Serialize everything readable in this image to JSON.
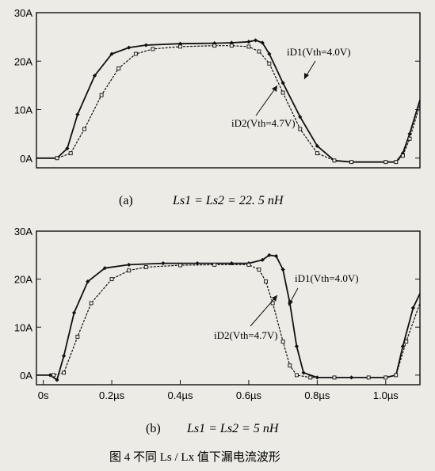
{
  "figure": {
    "caption": "图 4    不同 Ls / Lx 值下漏电流波形",
    "background": "#ecebe6",
    "ink": "#111111"
  },
  "chart_data": [
    {
      "type": "line",
      "panel_label": "(a)",
      "panel_caption": "Ls1 = Ls2 = 22. 5 nH",
      "x_unit": "µs",
      "xlim": [
        -0.02,
        1.1
      ],
      "ylim": [
        -2,
        30
      ],
      "y_ticks": [
        0,
        10,
        20,
        30
      ],
      "y_tick_labels": [
        "0A",
        "10A",
        "20A",
        "30A"
      ],
      "annotations": [
        "iD1(Vth=4.0V)",
        "iD2(Vth=4.7V)"
      ],
      "series": [
        {
          "name": "iD1(Vth=4.0V)",
          "marker": "diamond",
          "x": [
            -0.02,
            0.04,
            0.07,
            0.1,
            0.15,
            0.2,
            0.25,
            0.3,
            0.4,
            0.5,
            0.55,
            0.6,
            0.62,
            0.64,
            0.66,
            0.7,
            0.75,
            0.8,
            0.85,
            0.9,
            1.0,
            1.03,
            1.05,
            1.07,
            1.1
          ],
          "y": [
            0,
            0,
            2,
            9,
            17,
            21.5,
            22.8,
            23.3,
            23.6,
            23.7,
            23.8,
            24.0,
            24.3,
            23.8,
            21.5,
            15.5,
            8.5,
            2.5,
            -0.5,
            -0.8,
            -0.8,
            -0.8,
            1,
            5,
            12
          ]
        },
        {
          "name": "iD2(Vth=4.7V)",
          "marker": "square",
          "x": [
            -0.02,
            0.04,
            0.08,
            0.12,
            0.17,
            0.22,
            0.27,
            0.32,
            0.4,
            0.5,
            0.55,
            0.6,
            0.63,
            0.66,
            0.7,
            0.75,
            0.8,
            0.85,
            0.9,
            1.0,
            1.03,
            1.05,
            1.07,
            1.1
          ],
          "y": [
            0,
            0,
            1,
            6,
            13,
            18.5,
            21.5,
            22.5,
            23.0,
            23.2,
            23.2,
            23.0,
            22.0,
            19.5,
            13.5,
            6,
            1,
            -0.5,
            -0.8,
            -0.8,
            -0.8,
            0.5,
            4,
            11
          ]
        }
      ]
    },
    {
      "type": "line",
      "panel_label": "(b)",
      "panel_caption": "Ls1 = Ls2 = 5 nH",
      "x_unit": "µs",
      "x_ticks": [
        0,
        0.2,
        0.4,
        0.6,
        0.8,
        1.0
      ],
      "x_tick_labels": [
        "0s",
        "0.2µs",
        "0.4µs",
        "0.6µs",
        "0.8µs",
        "1.0µs"
      ],
      "xlim": [
        -0.02,
        1.1
      ],
      "ylim": [
        -2,
        30
      ],
      "y_ticks": [
        0,
        10,
        20,
        30
      ],
      "y_tick_labels": [
        "0A",
        "10A",
        "20A",
        "30A"
      ],
      "annotations": [
        "iD1(Vth=4.0V)",
        "iD2(Vth=4.7V)"
      ],
      "series": [
        {
          "name": "iD1(Vth=4.0V)",
          "marker": "diamond",
          "x": [
            -0.02,
            0.02,
            0.04,
            0.06,
            0.09,
            0.13,
            0.18,
            0.25,
            0.35,
            0.45,
            0.55,
            0.6,
            0.64,
            0.66,
            0.68,
            0.7,
            0.72,
            0.74,
            0.76,
            0.8,
            0.9,
            1.0,
            1.03,
            1.05,
            1.08,
            1.1
          ],
          "y": [
            0,
            0,
            -1,
            4,
            13,
            19.5,
            22.3,
            23.0,
            23.3,
            23.3,
            23.3,
            23.3,
            24.0,
            25.0,
            24.8,
            22,
            15,
            6,
            0.5,
            -0.5,
            -0.5,
            -0.5,
            0,
            6,
            14,
            17
          ]
        },
        {
          "name": "iD2(Vth=4.7V)",
          "marker": "square",
          "x": [
            -0.02,
            0.03,
            0.06,
            0.1,
            0.14,
            0.2,
            0.25,
            0.3,
            0.4,
            0.5,
            0.6,
            0.63,
            0.65,
            0.67,
            0.7,
            0.72,
            0.74,
            0.78,
            0.85,
            0.95,
            1.0,
            1.03,
            1.06,
            1.1
          ],
          "y": [
            0,
            0,
            0.5,
            8,
            15,
            20,
            21.8,
            22.5,
            22.9,
            23.0,
            23.0,
            22.0,
            19.5,
            15,
            7,
            2,
            0,
            -0.5,
            -0.5,
            -0.5,
            -0.5,
            0,
            7,
            15
          ]
        }
      ]
    }
  ]
}
